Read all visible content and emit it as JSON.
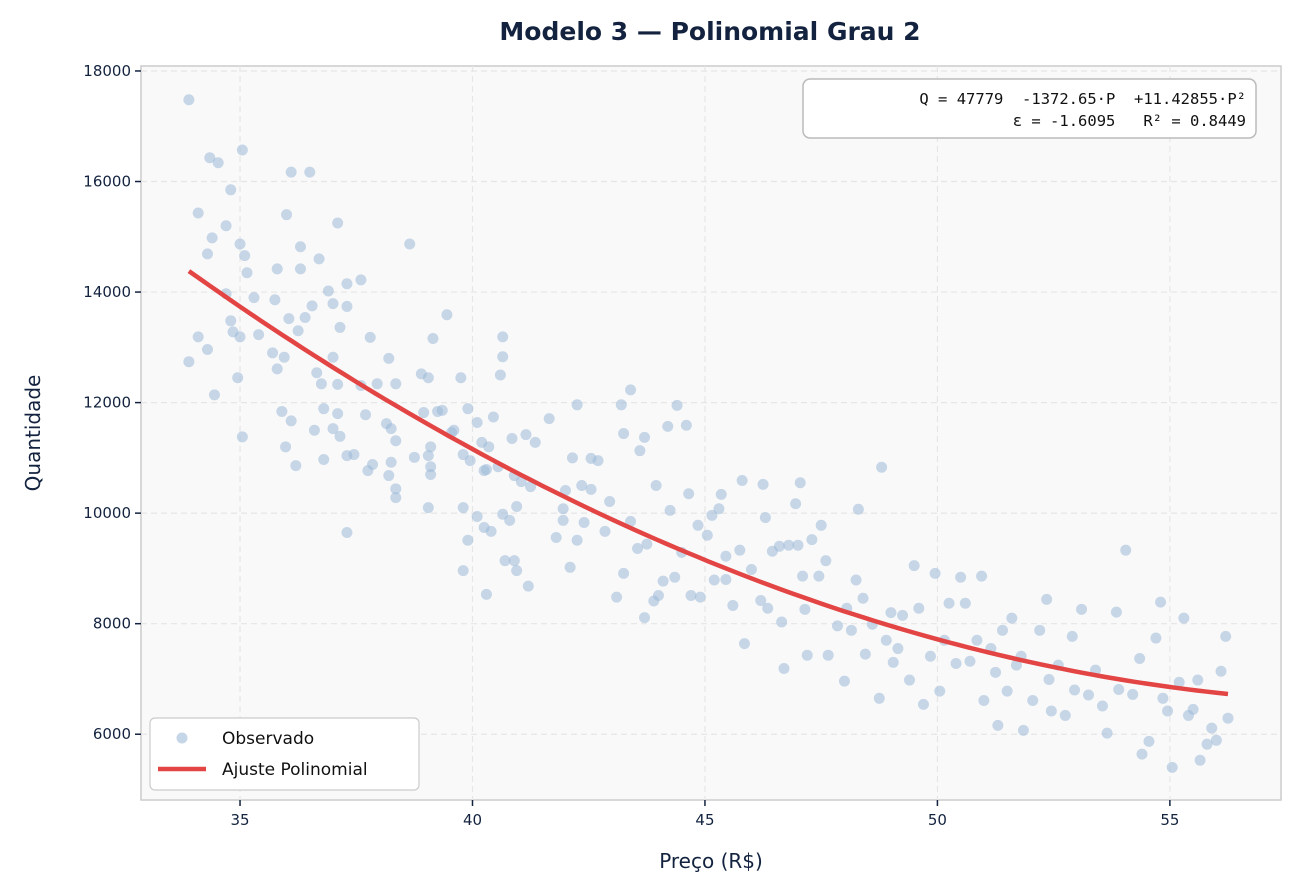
{
  "chart_data": {
    "type": "scatter",
    "title": "Modelo 3 — Polinomial Grau 2",
    "xlabel": "Preço (R$)",
    "ylabel": "Quantidade",
    "xlim": [
      32.87,
      57.39
    ],
    "ylim": [
      4810,
      18090
    ],
    "xticks": [
      35,
      40,
      45,
      50,
      55
    ],
    "yticks": [
      6000,
      8000,
      10000,
      12000,
      14000,
      16000,
      18000
    ],
    "grid": true,
    "legend_placement": "bottom-left",
    "legend": [
      "Observado",
      "Ajuste Polinomial"
    ],
    "colors": {
      "points": "#9dbad9",
      "fit": "#e34444",
      "text": "#13233f",
      "plot_bg": "#f9f9f9"
    },
    "annotation": [
      "Q = 47779  -1372.65·P  +11.42855·P²",
      "ε = -1.6095   R² = 0.8449"
    ],
    "fit": {
      "intercept": 47779,
      "b1": -1372.65,
      "b2": 11.42855,
      "x_range": [
        33.9,
        56.25
      ]
    },
    "points": [
      [
        33.9,
        17480
      ],
      [
        34.1,
        15430
      ],
      [
        34.35,
        16430
      ],
      [
        34.53,
        16340
      ],
      [
        35.05,
        16570
      ],
      [
        34.8,
        15850
      ],
      [
        36.1,
        16170
      ],
      [
        36.5,
        16170
      ],
      [
        36.0,
        15400
      ],
      [
        37.1,
        15250
      ],
      [
        33.9,
        12740
      ],
      [
        34.1,
        13190
      ],
      [
        34.3,
        12960
      ],
      [
        34.45,
        12140
      ],
      [
        34.95,
        12450
      ],
      [
        35.05,
        11380
      ],
      [
        34.3,
        14690
      ],
      [
        34.4,
        14980
      ],
      [
        34.7,
        15200
      ],
      [
        35.0,
        14870
      ],
      [
        35.1,
        14660
      ],
      [
        35.15,
        14350
      ],
      [
        34.7,
        13970
      ],
      [
        34.8,
        13480
      ],
      [
        34.85,
        13280
      ],
      [
        35.3,
        13900
      ],
      [
        35.4,
        13230
      ],
      [
        35.0,
        13190
      ],
      [
        35.7,
        12900
      ],
      [
        35.8,
        12610
      ],
      [
        35.95,
        12820
      ],
      [
        35.9,
        11840
      ],
      [
        35.98,
        11200
      ],
      [
        36.1,
        11670
      ],
      [
        36.2,
        10860
      ],
      [
        35.8,
        14420
      ],
      [
        35.75,
        13860
      ],
      [
        36.05,
        13520
      ],
      [
        36.25,
        13300
      ],
      [
        36.3,
        14820
      ],
      [
        36.3,
        14420
      ],
      [
        36.4,
        13540
      ],
      [
        36.55,
        13750
      ],
      [
        36.7,
        14600
      ],
      [
        36.9,
        14020
      ],
      [
        37.0,
        13790
      ],
      [
        37.15,
        13360
      ],
      [
        37.3,
        13740
      ],
      [
        37.3,
        14150
      ],
      [
        37.6,
        14220
      ],
      [
        36.65,
        12540
      ],
      [
        36.75,
        12340
      ],
      [
        37.0,
        12820
      ],
      [
        37.1,
        12330
      ],
      [
        36.8,
        11890
      ],
      [
        37.1,
        11800
      ],
      [
        37.0,
        11530
      ],
      [
        37.15,
        11390
      ],
      [
        36.6,
        11500
      ],
      [
        36.8,
        10970
      ],
      [
        37.3,
        11040
      ],
      [
        37.3,
        9650
      ],
      [
        37.45,
        11060
      ],
      [
        37.7,
        11780
      ],
      [
        37.6,
        12310
      ],
      [
        37.8,
        13180
      ],
      [
        37.95,
        12340
      ],
      [
        37.75,
        10770
      ],
      [
        37.85,
        10880
      ],
      [
        38.15,
        11620
      ],
      [
        38.25,
        11530
      ],
      [
        38.2,
        12800
      ],
      [
        38.35,
        12340
      ],
      [
        38.35,
        11310
      ],
      [
        38.25,
        10920
      ],
      [
        38.35,
        10440
      ],
      [
        38.35,
        10280
      ],
      [
        38.2,
        10680
      ],
      [
        38.65,
        14870
      ],
      [
        38.75,
        11010
      ],
      [
        38.9,
        12520
      ],
      [
        39.05,
        12450
      ],
      [
        39.15,
        13160
      ],
      [
        39.45,
        13590
      ],
      [
        38.95,
        11820
      ],
      [
        39.05,
        11040
      ],
      [
        39.1,
        10840
      ],
      [
        39.1,
        10700
      ],
      [
        39.05,
        10100
      ],
      [
        39.1,
        11200
      ],
      [
        39.25,
        11840
      ],
      [
        39.35,
        11860
      ],
      [
        39.55,
        11460
      ],
      [
        39.6,
        11500
      ],
      [
        39.75,
        12450
      ],
      [
        39.9,
        11890
      ],
      [
        39.8,
        11060
      ],
      [
        39.95,
        10950
      ],
      [
        39.8,
        10100
      ],
      [
        39.9,
        9510
      ],
      [
        39.8,
        8960
      ],
      [
        40.1,
        11640
      ],
      [
        40.2,
        11280
      ],
      [
        40.35,
        11200
      ],
      [
        40.1,
        9940
      ],
      [
        40.25,
        9740
      ],
      [
        40.3,
        8530
      ],
      [
        40.25,
        10770
      ],
      [
        40.3,
        10790
      ],
      [
        40.4,
        9670
      ],
      [
        40.45,
        11740
      ],
      [
        40.6,
        12500
      ],
      [
        40.65,
        12830
      ],
      [
        40.65,
        13190
      ],
      [
        40.55,
        10840
      ],
      [
        40.65,
        9980
      ],
      [
        40.7,
        9140
      ],
      [
        40.8,
        9870
      ],
      [
        40.85,
        11350
      ],
      [
        40.9,
        10680
      ],
      [
        40.9,
        9140
      ],
      [
        40.95,
        10120
      ],
      [
        40.95,
        8960
      ],
      [
        41.05,
        10570
      ],
      [
        41.15,
        11420
      ],
      [
        41.25,
        10480
      ],
      [
        41.2,
        8680
      ],
      [
        41.35,
        11280
      ],
      [
        41.65,
        11710
      ],
      [
        41.8,
        9560
      ],
      [
        41.95,
        10080
      ],
      [
        41.95,
        9870
      ],
      [
        42.0,
        10410
      ],
      [
        42.1,
        9020
      ],
      [
        42.15,
        11000
      ],
      [
        42.25,
        11960
      ],
      [
        42.25,
        9510
      ],
      [
        42.35,
        10500
      ],
      [
        42.4,
        9830
      ],
      [
        42.55,
        10990
      ],
      [
        42.55,
        10430
      ],
      [
        42.7,
        10950
      ],
      [
        42.85,
        9670
      ],
      [
        42.95,
        10210
      ],
      [
        43.1,
        8480
      ],
      [
        43.2,
        11960
      ],
      [
        43.25,
        11440
      ],
      [
        43.25,
        8910
      ],
      [
        43.4,
        12230
      ],
      [
        43.4,
        9850
      ],
      [
        43.55,
        9360
      ],
      [
        43.6,
        11130
      ],
      [
        43.7,
        11370
      ],
      [
        43.7,
        8110
      ],
      [
        43.75,
        9440
      ],
      [
        43.9,
        8410
      ],
      [
        43.95,
        10500
      ],
      [
        44.0,
        8510
      ],
      [
        44.1,
        8770
      ],
      [
        44.2,
        11570
      ],
      [
        44.25,
        10050
      ],
      [
        44.35,
        8840
      ],
      [
        44.4,
        11950
      ],
      [
        44.5,
        9290
      ],
      [
        44.6,
        11590
      ],
      [
        44.65,
        10350
      ],
      [
        44.7,
        8510
      ],
      [
        44.85,
        9780
      ],
      [
        44.9,
        8480
      ],
      [
        45.05,
        9600
      ],
      [
        45.15,
        9960
      ],
      [
        45.2,
        8790
      ],
      [
        45.3,
        10080
      ],
      [
        45.35,
        10340
      ],
      [
        45.45,
        9220
      ],
      [
        45.45,
        8800
      ],
      [
        45.6,
        8330
      ],
      [
        45.75,
        9330
      ],
      [
        45.85,
        7640
      ],
      [
        45.8,
        10590
      ],
      [
        46.0,
        8980
      ],
      [
        46.2,
        8420
      ],
      [
        46.25,
        10520
      ],
      [
        46.3,
        9920
      ],
      [
        46.35,
        8280
      ],
      [
        46.45,
        9310
      ],
      [
        46.6,
        9400
      ],
      [
        46.65,
        8030
      ],
      [
        46.7,
        7190
      ],
      [
        46.8,
        9420
      ],
      [
        46.95,
        10170
      ],
      [
        47.0,
        9420
      ],
      [
        47.05,
        10550
      ],
      [
        47.1,
        8860
      ],
      [
        47.15,
        8260
      ],
      [
        47.2,
        7430
      ],
      [
        47.3,
        9520
      ],
      [
        47.45,
        8860
      ],
      [
        47.5,
        9780
      ],
      [
        47.6,
        9140
      ],
      [
        47.65,
        7430
      ],
      [
        47.85,
        7960
      ],
      [
        48.0,
        6960
      ],
      [
        48.05,
        8280
      ],
      [
        48.15,
        7880
      ],
      [
        48.25,
        8790
      ],
      [
        48.3,
        10070
      ],
      [
        48.4,
        8460
      ],
      [
        48.45,
        7450
      ],
      [
        48.6,
        7990
      ],
      [
        48.75,
        6650
      ],
      [
        48.8,
        10830
      ],
      [
        48.9,
        7700
      ],
      [
        49.0,
        8200
      ],
      [
        49.05,
        7300
      ],
      [
        49.15,
        7550
      ],
      [
        49.25,
        8150
      ],
      [
        49.4,
        6980
      ],
      [
        49.5,
        9050
      ],
      [
        49.6,
        8280
      ],
      [
        49.7,
        6540
      ],
      [
        49.85,
        7410
      ],
      [
        49.95,
        8910
      ],
      [
        50.05,
        6780
      ],
      [
        50.15,
        7700
      ],
      [
        50.25,
        8370
      ],
      [
        50.4,
        7280
      ],
      [
        50.5,
        8840
      ],
      [
        50.6,
        8370
      ],
      [
        50.7,
        7320
      ],
      [
        50.85,
        7700
      ],
      [
        50.95,
        8860
      ],
      [
        51.0,
        6610
      ],
      [
        51.15,
        7550
      ],
      [
        51.25,
        7120
      ],
      [
        51.3,
        6160
      ],
      [
        51.4,
        7880
      ],
      [
        51.5,
        6780
      ],
      [
        51.6,
        8100
      ],
      [
        51.7,
        7250
      ],
      [
        51.8,
        7410
      ],
      [
        51.85,
        6070
      ],
      [
        52.05,
        6610
      ],
      [
        52.2,
        7880
      ],
      [
        52.35,
        8440
      ],
      [
        52.4,
        6990
      ],
      [
        52.45,
        6420
      ],
      [
        52.6,
        7250
      ],
      [
        52.75,
        6340
      ],
      [
        52.9,
        7770
      ],
      [
        52.95,
        6800
      ],
      [
        53.1,
        8260
      ],
      [
        53.25,
        6710
      ],
      [
        53.4,
        7160
      ],
      [
        53.55,
        6510
      ],
      [
        53.65,
        6020
      ],
      [
        53.85,
        8210
      ],
      [
        53.9,
        6810
      ],
      [
        54.05,
        9330
      ],
      [
        54.2,
        6720
      ],
      [
        54.35,
        7370
      ],
      [
        54.4,
        5640
      ],
      [
        54.55,
        5870
      ],
      [
        54.7,
        7740
      ],
      [
        54.8,
        8390
      ],
      [
        54.85,
        6650
      ],
      [
        54.95,
        6420
      ],
      [
        55.05,
        5400
      ],
      [
        55.2,
        6940
      ],
      [
        55.3,
        8100
      ],
      [
        55.4,
        6340
      ],
      [
        55.5,
        6450
      ],
      [
        55.6,
        6980
      ],
      [
        55.65,
        5530
      ],
      [
        55.8,
        5820
      ],
      [
        55.9,
        6110
      ],
      [
        56.0,
        5890
      ],
      [
        56.1,
        7140
      ],
      [
        56.2,
        7770
      ],
      [
        56.25,
        6290
      ]
    ]
  }
}
